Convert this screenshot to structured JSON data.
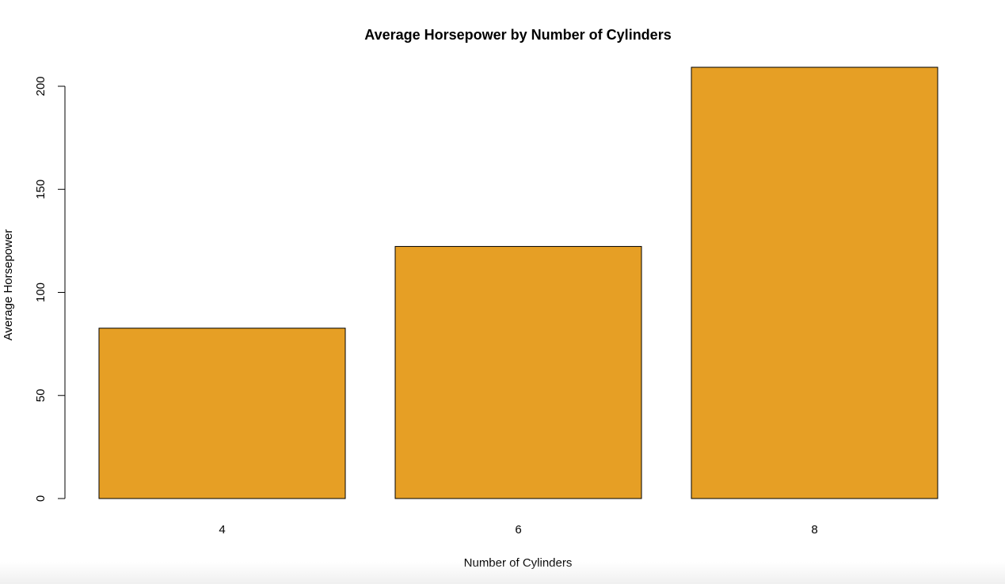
{
  "chart_data": {
    "type": "bar",
    "title": "Average Horsepower by Number of Cylinders",
    "xlabel": "Number of Cylinders",
    "ylabel": "Average Horsepower",
    "categories": [
      "4",
      "6",
      "8"
    ],
    "values": [
      82.64,
      122.29,
      209.21
    ],
    "ylim": [
      0,
      200
    ],
    "yticks": [
      0,
      50,
      100,
      150,
      200
    ],
    "grid": false,
    "legend": "none",
    "bar_color": "#E69F25",
    "bar_border_color": "#000000"
  }
}
